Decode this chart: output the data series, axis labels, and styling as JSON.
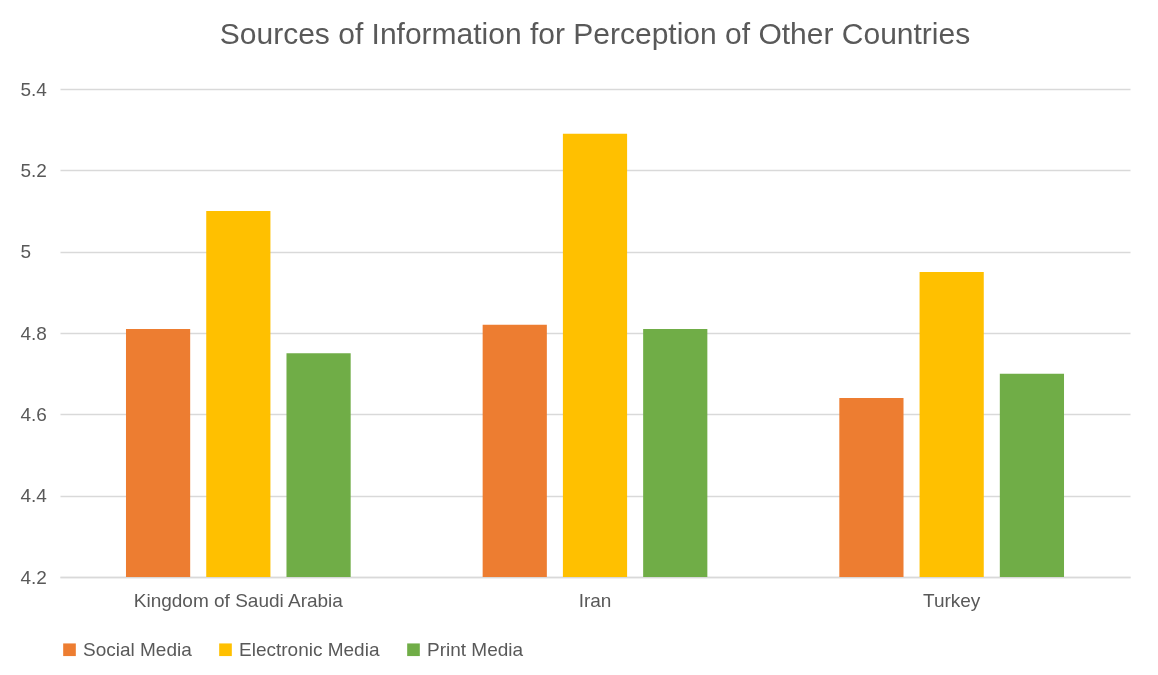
{
  "chart_data": {
    "type": "bar",
    "title": "Sources of Information for Perception of Other Countries",
    "categories": [
      "Kingdom of Saudi Arabia",
      "Iran",
      "Turkey"
    ],
    "series": [
      {
        "name": "Social Media",
        "color": "#ed7d31",
        "values": [
          4.81,
          4.82,
          4.64
        ]
      },
      {
        "name": "Electronic Media",
        "color": "#ffc000",
        "values": [
          5.1,
          5.29,
          4.95
        ]
      },
      {
        "name": "Print Media",
        "color": "#70ad47",
        "values": [
          4.75,
          4.81,
          4.7
        ]
      }
    ],
    "ylim": [
      4.2,
      5.4
    ],
    "yticks": [
      4.2,
      4.4,
      4.6,
      4.8,
      5,
      5.2,
      5.4
    ],
    "grid": "y",
    "legend": "bottom"
  }
}
